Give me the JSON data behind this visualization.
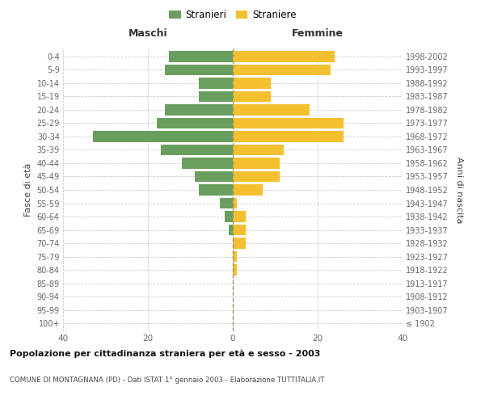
{
  "age_groups": [
    "100+",
    "95-99",
    "90-94",
    "85-89",
    "80-84",
    "75-79",
    "70-74",
    "65-69",
    "60-64",
    "55-59",
    "50-54",
    "45-49",
    "40-44",
    "35-39",
    "30-34",
    "25-29",
    "20-24",
    "15-19",
    "10-14",
    "5-9",
    "0-4"
  ],
  "birth_years": [
    "≤ 1902",
    "1903-1907",
    "1908-1912",
    "1913-1917",
    "1918-1922",
    "1923-1927",
    "1928-1932",
    "1933-1937",
    "1938-1942",
    "1943-1947",
    "1948-1952",
    "1953-1957",
    "1958-1962",
    "1963-1967",
    "1968-1972",
    "1973-1977",
    "1978-1982",
    "1983-1987",
    "1988-1992",
    "1993-1997",
    "1998-2002"
  ],
  "maschi": [
    0,
    0,
    0,
    0,
    0,
    0,
    0,
    1,
    2,
    3,
    8,
    9,
    12,
    17,
    33,
    18,
    16,
    8,
    8,
    16,
    15
  ],
  "femmine": [
    0,
    0,
    0,
    0,
    1,
    1,
    3,
    3,
    3,
    1,
    7,
    11,
    11,
    12,
    26,
    26,
    18,
    9,
    9,
    23,
    24
  ],
  "color_maschi": "#6a9e5e",
  "color_femmine": "#f5c030",
  "dashed_line_color": "#999966",
  "background_color": "#ffffff",
  "grid_color": "#cccccc",
  "title": "Popolazione per cittadinanza straniera per età e sesso - 2003",
  "subtitle": "COMUNE DI MONTAGNANA (PD) - Dati ISTAT 1° gennaio 2003 - Elaborazione TUTTITALIA.IT",
  "xlabel_maschi": "Maschi",
  "xlabel_femmine": "Femmine",
  "ylabel_left": "Fasce di età",
  "ylabel_right": "Anni di nascita",
  "legend_maschi": "Stranieri",
  "legend_femmine": "Straniere",
  "xlim": 40,
  "bar_height": 0.8
}
